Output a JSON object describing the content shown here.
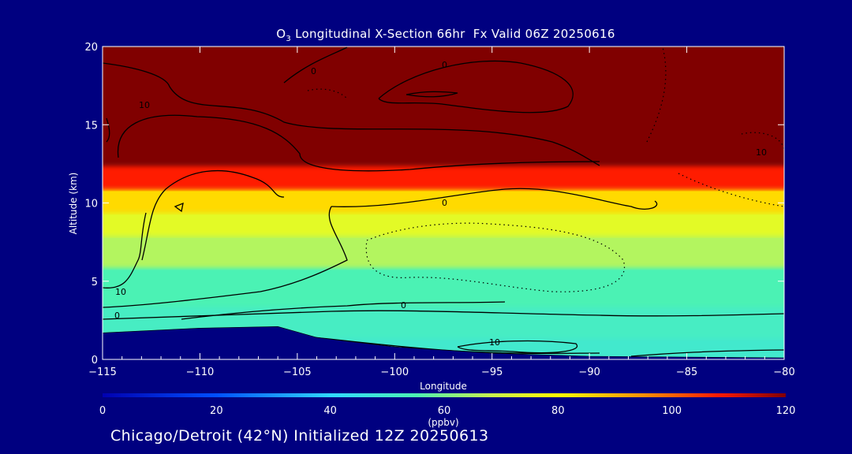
{
  "chart_data": {
    "type": "heatmap",
    "title_prefix": "O",
    "title_sub": "3",
    "title_rest": " Longitudinal X-Section 66hr  Fx Valid 06Z 20250616",
    "xlabel": "Longitude",
    "ylabel": "Altitude (km)",
    "xlim": [
      -115,
      -80
    ],
    "ylim": [
      0,
      20
    ],
    "x_ticks": [
      -115,
      -110,
      -105,
      -100,
      -95,
      -90,
      -85,
      -80
    ],
    "x_tick_labels": [
      "−115",
      "−110",
      "−105",
      "−100",
      "−95",
      "−90",
      "−85",
      "−80"
    ],
    "y_ticks": [
      0,
      5,
      10,
      15,
      20
    ],
    "y_tick_labels": [
      "0",
      "5",
      "10",
      "15",
      "20"
    ],
    "colorbar": {
      "label": "(ppbv)",
      "ticks": [
        0,
        20,
        40,
        60,
        80,
        100,
        120
      ],
      "tick_labels": [
        "0",
        "20",
        "40",
        "60",
        "80",
        "100",
        "120"
      ],
      "range": [
        0,
        120
      ],
      "stops": [
        {
          "v": 0,
          "color": "#0000b0"
        },
        {
          "v": 20,
          "color": "#0050ff"
        },
        {
          "v": 40,
          "color": "#30d8ff"
        },
        {
          "v": 55,
          "color": "#4cf2b4"
        },
        {
          "v": 68,
          "color": "#c6f550"
        },
        {
          "v": 80,
          "color": "#ffff00"
        },
        {
          "v": 95,
          "color": "#ff9000"
        },
        {
          "v": 108,
          "color": "#ff1a00"
        },
        {
          "v": 120,
          "color": "#800000"
        }
      ]
    },
    "profile_bands": [
      {
        "z_min": 0,
        "z_max": 1.5,
        "ppbv": 50
      },
      {
        "z_min": 1.5,
        "z_max": 3.5,
        "ppbv": 52
      },
      {
        "z_min": 3.5,
        "z_max": 6,
        "ppbv": 55
      },
      {
        "z_min": 6,
        "z_max": 8,
        "ppbv": 66
      },
      {
        "z_min": 8,
        "z_max": 9.5,
        "ppbv": 74
      },
      {
        "z_min": 9.5,
        "z_max": 11,
        "ppbv": 85
      },
      {
        "z_min": 11,
        "z_max": 12.5,
        "ppbv": 108
      },
      {
        "z_min": 12.5,
        "z_max": 20,
        "ppbv": 120
      }
    ],
    "terrain": [
      {
        "lon": -115,
        "alt": 1.7
      },
      {
        "lon": -110,
        "alt": 2.0
      },
      {
        "lon": -106,
        "alt": 2.1
      },
      {
        "lon": -104,
        "alt": 1.4
      },
      {
        "lon": -100,
        "alt": 0.8
      },
      {
        "lon": -95,
        "alt": 0.4
      },
      {
        "lon": -90,
        "alt": 0.2
      },
      {
        "lon": -85,
        "alt": 0.15
      },
      {
        "lon": -80,
        "alt": 0.1
      }
    ],
    "contour_labels": [
      "10",
      "0",
      "0",
      "10",
      "0",
      "0",
      "10",
      "0",
      "10"
    ]
  },
  "footer": {
    "label": "Chicago/Detroit (42°N) Initialized 12Z 20250613"
  }
}
